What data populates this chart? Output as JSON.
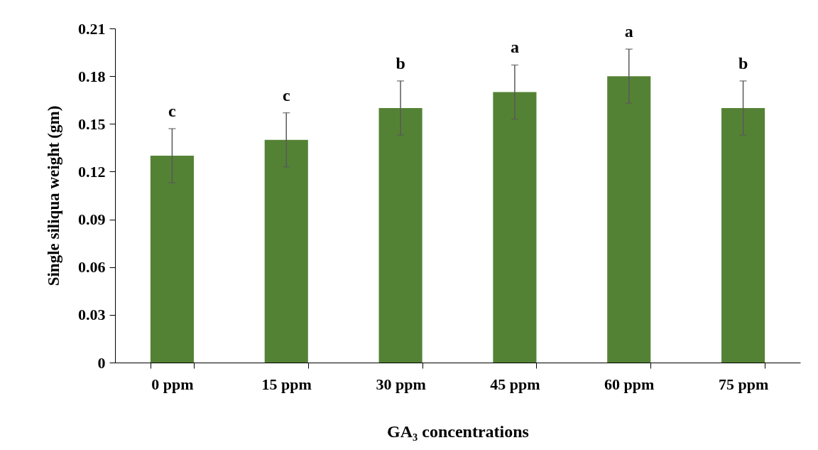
{
  "chart_data": {
    "type": "bar",
    "xlabel": "GA₃ concentrations",
    "ylabel": "Single  siliqua  weight (gm)",
    "categories": [
      "0 ppm",
      "15 ppm",
      "30 ppm",
      "45 ppm",
      "60 ppm",
      "75 ppm"
    ],
    "values": [
      0.13,
      0.14,
      0.16,
      0.17,
      0.18,
      0.16
    ],
    "errors": [
      0.017,
      0.017,
      0.017,
      0.017,
      0.017,
      0.017
    ],
    "color": "#548235",
    "ylim": [
      0,
      0.21
    ],
    "yticks": [
      0,
      0.03,
      0.06,
      0.09,
      0.12,
      0.15,
      0.18,
      0.21
    ],
    "grid": false,
    "annotations": [
      {
        "text": "c",
        "x": "0 ppm",
        "y": 0.147
      },
      {
        "text": "c",
        "x": "15 ppm",
        "y": 0.157
      },
      {
        "text": "b",
        "x": "30 ppm",
        "y": 0.177
      },
      {
        "text": "a",
        "x": "45 ppm",
        "y": 0.187
      },
      {
        "text": "a",
        "x": "60 ppm",
        "y": 0.197
      },
      {
        "text": "b",
        "x": "75 ppm",
        "y": 0.177
      }
    ]
  }
}
